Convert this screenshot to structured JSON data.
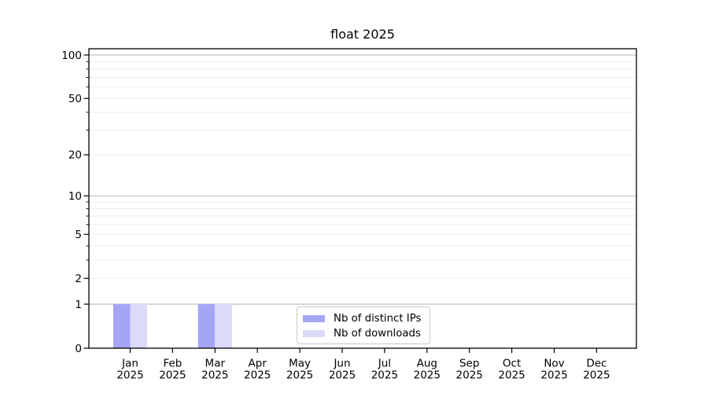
{
  "title": "float 2025",
  "chart_data": {
    "type": "bar",
    "title": "float 2025",
    "year": "2025",
    "categories": [
      {
        "month": "Jan",
        "year": "2025"
      },
      {
        "month": "Feb",
        "year": "2025"
      },
      {
        "month": "Mar",
        "year": "2025"
      },
      {
        "month": "Apr",
        "year": "2025"
      },
      {
        "month": "May",
        "year": "2025"
      },
      {
        "month": "Jun",
        "year": "2025"
      },
      {
        "month": "Jul",
        "year": "2025"
      },
      {
        "month": "Aug",
        "year": "2025"
      },
      {
        "month": "Sep",
        "year": "2025"
      },
      {
        "month": "Oct",
        "year": "2025"
      },
      {
        "month": "Nov",
        "year": "2025"
      },
      {
        "month": "Dec",
        "year": "2025"
      }
    ],
    "series": [
      {
        "name": "Nb of distinct IPs",
        "color": "#a5a5f6",
        "values": [
          1,
          0,
          1,
          0,
          0,
          0,
          0,
          0,
          0,
          0,
          0,
          0
        ]
      },
      {
        "name": "Nb of downloads",
        "color": "#dbdbf9",
        "values": [
          1,
          0,
          1,
          0,
          0,
          0,
          0,
          0,
          0,
          0,
          0,
          0
        ]
      }
    ],
    "yscale": "log1p",
    "ylim": [
      0,
      110
    ],
    "yticks": [
      0,
      1,
      2,
      5,
      10,
      20,
      50,
      100
    ],
    "yticks_major": [
      1,
      10,
      100
    ],
    "yticks_minor": [
      3,
      4,
      6,
      7,
      8,
      9,
      30,
      40,
      60,
      70,
      80,
      90
    ],
    "grid": true,
    "legend_position": "lower center",
    "colors": {
      "grid_major": "#c2c2c2",
      "grid_minor": "#ededed",
      "axis": "#000000",
      "text": "#000000",
      "background": "#ffffff"
    }
  }
}
